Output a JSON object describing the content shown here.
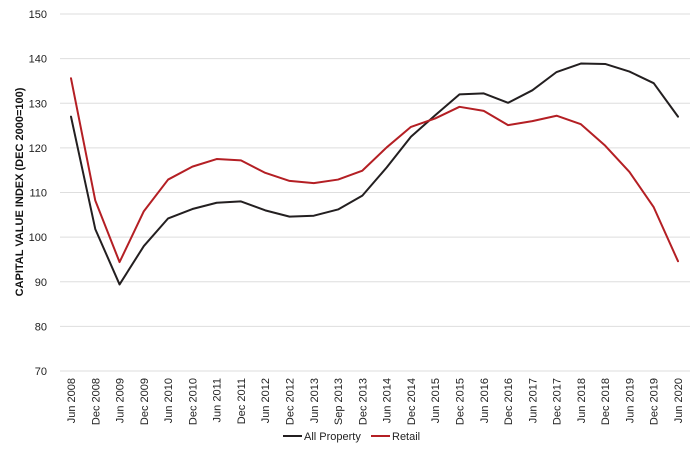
{
  "chart_data": {
    "type": "line",
    "title": "",
    "xlabel": "",
    "ylabel": "CAPITAL VALUE INDEX (DEC 2000=100)",
    "ylim": [
      70,
      150
    ],
    "yticks": [
      70,
      80,
      90,
      100,
      110,
      120,
      130,
      140,
      150
    ],
    "grid": "horizontal",
    "legend": "bottom-center",
    "x": [
      "Jun 2008",
      "Dec 2008",
      "Jun 2009",
      "Dec 2009",
      "Jun 2010",
      "Dec 2010",
      "Jun 2011",
      "Dec 2011",
      "Jun 2012",
      "Dec 2012",
      "Jun 2013",
      "Sep 2013",
      "Dec 2013",
      "Jun 2014",
      "Dec 2014",
      "Jun 2015",
      "Dec 2015",
      "Jun 2016",
      "Dec 2016",
      "Jun 2017",
      "Dec 2017",
      "Jun 2018",
      "Dec 2018",
      "Jun 2019",
      "Dec 2019",
      "Jun 2020"
    ],
    "series": [
      {
        "name": "All Property",
        "color": "#231f20",
        "values": [
          127,
          101.8,
          89.4,
          98,
          104.2,
          106.3,
          107.7,
          108,
          106,
          104.6,
          104.8,
          106.2,
          109.3,
          115.6,
          122.5,
          127.3,
          132,
          132.2,
          130.1,
          132.9,
          137,
          138.9,
          138.8,
          137.1,
          134.5,
          127
        ]
      },
      {
        "name": "Retail",
        "color": "#b41f24",
        "values": [
          135.6,
          108.2,
          94.4,
          105.8,
          112.9,
          115.8,
          117.5,
          117.2,
          114.4,
          112.6,
          112.1,
          112.9,
          114.9,
          120.1,
          124.7,
          126.6,
          129.2,
          128.3,
          125.1,
          126,
          127.2,
          125.3,
          120.5,
          114.6,
          106.7,
          94.6
        ]
      }
    ]
  }
}
